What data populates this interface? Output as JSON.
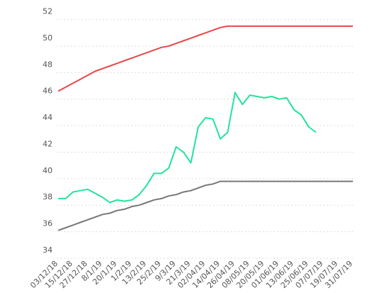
{
  "chart_data": {
    "type": "line",
    "categories": [
      "03/12/18",
      null,
      "15/12/18",
      null,
      "27/12/18",
      null,
      "8/1/19",
      null,
      "20/1/19",
      null,
      "1/2/19",
      null,
      "13/2/19",
      null,
      "25/2/19",
      null,
      "9/3/19",
      null,
      "21/3/19",
      null,
      "02/04/19",
      null,
      "14/04/19",
      null,
      "26/04/19",
      null,
      "08/05/19",
      null,
      "20/05/19",
      null,
      "01/06/19",
      null,
      "13/06/19",
      null,
      "25/06/19",
      null,
      "07/07/19",
      null,
      "19/07/19",
      null,
      "31/07/19"
    ],
    "series": [
      {
        "color": "#e8474a",
        "values": [
          46.6,
          46.9,
          47.2,
          47.5,
          47.8,
          48.1,
          48.3,
          48.5,
          48.7,
          48.9,
          49.1,
          49.3,
          49.5,
          49.7,
          49.9,
          50.0,
          50.2,
          50.4,
          50.6,
          50.8,
          51.0,
          51.2,
          51.4,
          51.5,
          51.5,
          51.5,
          51.5,
          51.5,
          51.5,
          51.5,
          51.5,
          51.5,
          51.5,
          51.5,
          51.5,
          51.5,
          51.5,
          51.5,
          51.5,
          51.5,
          51.5
        ]
      },
      {
        "color": "#777777",
        "values": [
          36.1,
          36.3,
          36.5,
          36.7,
          36.9,
          37.1,
          37.3,
          37.4,
          37.6,
          37.7,
          37.9,
          38.0,
          38.2,
          38.4,
          38.5,
          38.7,
          38.8,
          39.0,
          39.1,
          39.3,
          39.5,
          39.6,
          39.8,
          39.8,
          39.8,
          39.8,
          39.8,
          39.8,
          39.8,
          39.8,
          39.8,
          39.8,
          39.8,
          39.8,
          39.8,
          39.8,
          39.8,
          39.8,
          39.8,
          39.8,
          39.8
        ]
      },
      {
        "color": "#22e39a",
        "values": [
          38.5,
          38.5,
          39.0,
          39.1,
          39.2,
          38.9,
          38.6,
          38.2,
          38.4,
          38.3,
          38.4,
          38.8,
          39.5,
          40.4,
          40.4,
          40.8,
          42.4,
          42.0,
          41.2,
          43.9,
          44.6,
          44.5,
          43.0,
          43.5,
          46.5,
          45.6,
          46.3,
          46.2,
          46.1,
          46.2,
          46.0,
          46.1,
          45.2,
          44.8,
          43.9,
          43.5,
          null,
          null,
          null,
          null,
          null
        ]
      }
    ],
    "ylim": [
      34,
      52
    ],
    "yticks": [
      34,
      36,
      38,
      40,
      42,
      44,
      46,
      48,
      50,
      52
    ],
    "grid": true
  }
}
